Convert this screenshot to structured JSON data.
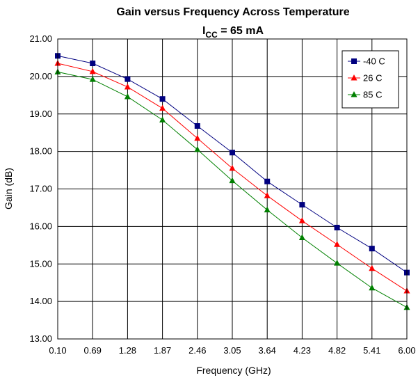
{
  "chart_data": {
    "type": "line",
    "title": "Gain versus Frequency Across Temperature",
    "subtitle": {
      "main": "I",
      "sub": "CC",
      "rest": " = 65 mA"
    },
    "xlabel": "Frequency (GHz)",
    "ylabel": "Gain (dB)",
    "x": [
      0.1,
      0.69,
      1.28,
      1.87,
      2.46,
      3.05,
      3.64,
      4.23,
      4.82,
      5.41,
      6.0
    ],
    "x_tick_labels": [
      "0.10",
      "0.69",
      "1.28",
      "1.87",
      "2.46",
      "3.05",
      "3.64",
      "4.23",
      "4.82",
      "5.41",
      "6.00"
    ],
    "ylim": [
      13.0,
      21.0
    ],
    "y_tick_labels": [
      "13.00",
      "14.00",
      "15.00",
      "16.00",
      "17.00",
      "18.00",
      "19.00",
      "20.00",
      "21.00"
    ],
    "grid": true,
    "legend_position": "top-right",
    "series": [
      {
        "name": "-40 C",
        "color": "#000080",
        "marker": "square",
        "values": [
          20.55,
          20.35,
          19.93,
          19.4,
          18.68,
          17.97,
          17.2,
          16.58,
          15.97,
          15.41,
          14.77
        ]
      },
      {
        "name": "26 C",
        "color": "#ff0000",
        "marker": "triangle",
        "values": [
          20.35,
          20.13,
          19.72,
          19.15,
          18.35,
          17.55,
          16.82,
          16.15,
          15.52,
          14.88,
          14.28
        ]
      },
      {
        "name": "85 C",
        "color": "#008000",
        "marker": "triangle",
        "values": [
          20.12,
          19.92,
          19.46,
          18.84,
          18.05,
          17.22,
          16.44,
          15.7,
          15.02,
          14.36,
          13.84
        ]
      }
    ]
  }
}
